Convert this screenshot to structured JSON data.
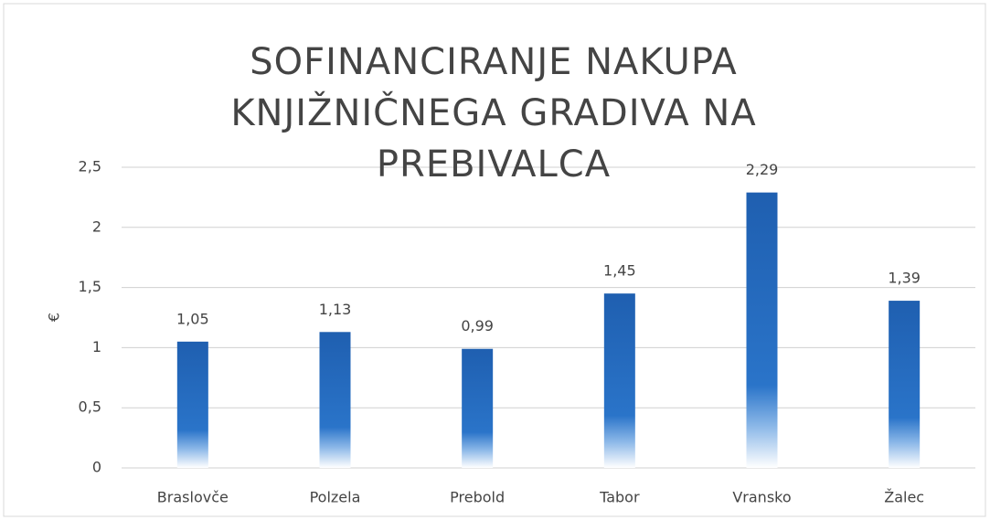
{
  "chart_data": {
    "type": "bar",
    "title": "SOFINANCIRANJE NAKUPA KNJIŽNIČNEGA GRADIVA NA PREBIVALCA",
    "y_label": "€",
    "categories": [
      "Braslovče",
      "Polzela",
      "Prebold",
      "Tabor",
      "Vransko",
      "Žalec"
    ],
    "values": [
      1.05,
      1.13,
      0.99,
      1.45,
      2.29,
      1.39
    ],
    "value_labels": [
      "1,05",
      "1,13",
      "0,99",
      "1,45",
      "2,29",
      "1,39"
    ],
    "color": "#1f5fb0",
    "ylim": [
      0,
      2.5
    ],
    "yticks": [
      0,
      {
        "value": 0.5,
        "label": "0,5"
      },
      1,
      {
        "value": 1.5,
        "label": "1,5"
      },
      2,
      {
        "value": 2.5,
        "label": "2,5"
      }
    ],
    "grid": true
  }
}
